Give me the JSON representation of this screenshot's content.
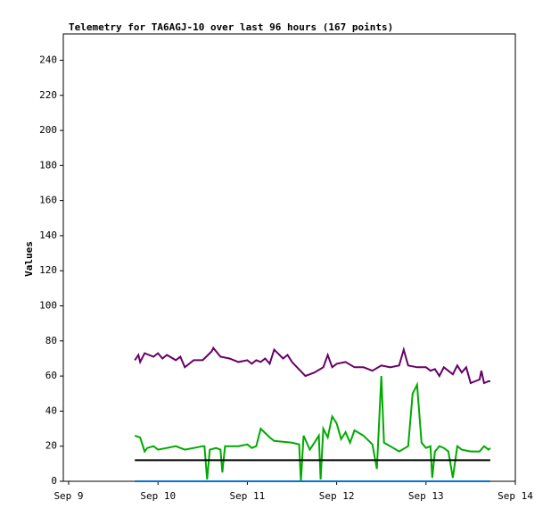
{
  "chart_data": {
    "type": "line",
    "title": "Telemetry for TA6AGJ-10 over last 96 hours (167 points)",
    "y_label": "Values",
    "xlim": [
      8.94,
      14.0
    ],
    "xticks": [
      {
        "value": 9,
        "label": "Sep 9"
      },
      {
        "value": 10,
        "label": "Sep 10"
      },
      {
        "value": 11,
        "label": "Sep 11"
      },
      {
        "value": 12,
        "label": "Sep 12"
      },
      {
        "value": 13,
        "label": "Sep 13"
      },
      {
        "value": 14,
        "label": "Sep 14"
      }
    ],
    "ylim": [
      0,
      255
    ],
    "yticks": [
      0,
      20,
      40,
      60,
      80,
      100,
      120,
      140,
      160,
      180,
      200,
      220,
      240
    ],
    "series": [
      {
        "color": "#660066",
        "x": [
          9.74,
          9.78,
          9.8,
          9.85,
          9.95,
          10.0,
          10.05,
          10.1,
          10.2,
          10.25,
          10.3,
          10.4,
          10.5,
          10.6,
          10.62,
          10.7,
          10.8,
          10.9,
          11.0,
          11.05,
          11.1,
          11.15,
          11.2,
          11.25,
          11.3,
          11.4,
          11.45,
          11.5,
          11.65,
          11.75,
          11.85,
          11.9,
          11.95,
          12.0,
          12.1,
          12.2,
          12.3,
          12.4,
          12.5,
          12.6,
          12.7,
          12.75,
          12.8,
          12.9,
          13.0,
          13.05,
          13.1,
          13.15,
          13.2,
          13.3,
          13.35,
          13.4,
          13.45,
          13.5,
          13.55,
          13.6,
          13.62,
          13.65,
          13.7,
          13.72
        ],
        "values": [
          69,
          72,
          68,
          73,
          71,
          73,
          70,
          72,
          69,
          71,
          65,
          69,
          69,
          74,
          76,
          71,
          70,
          68,
          69,
          67,
          69,
          68,
          70,
          67,
          75,
          70,
          72,
          68,
          60,
          62,
          65,
          72,
          65,
          67,
          68,
          65,
          65,
          63,
          66,
          65,
          66,
          75,
          66,
          65,
          65,
          63,
          64,
          60,
          65,
          61,
          66,
          62,
          65,
          56,
          57,
          58,
          63,
          56,
          57,
          57
        ]
      },
      {
        "color": "#00aa00",
        "x": [
          9.74,
          9.8,
          9.85,
          9.88,
          9.95,
          10.0,
          10.1,
          10.2,
          10.3,
          10.4,
          10.5,
          10.52,
          10.55,
          10.58,
          10.65,
          10.7,
          10.72,
          10.75,
          10.8,
          10.9,
          11.0,
          11.05,
          11.1,
          11.15,
          11.25,
          11.3,
          11.5,
          11.58,
          11.6,
          11.63,
          11.7,
          11.75,
          11.8,
          11.82,
          11.85,
          11.9,
          11.95,
          12.0,
          12.05,
          12.1,
          12.15,
          12.2,
          12.3,
          12.4,
          12.45,
          12.5,
          12.53,
          12.6,
          12.7,
          12.8,
          12.85,
          12.9,
          12.95,
          13.0,
          13.05,
          13.07,
          13.1,
          13.15,
          13.2,
          13.25,
          13.3,
          13.35,
          13.4,
          13.5,
          13.6,
          13.65,
          13.7,
          13.72
        ],
        "values": [
          26,
          25,
          17,
          19,
          20,
          18,
          19,
          20,
          18,
          19,
          20,
          20,
          1,
          18,
          19,
          18,
          5,
          20,
          20,
          20,
          21,
          19,
          20,
          30,
          25,
          23,
          22,
          21,
          0,
          26,
          18,
          22,
          26,
          1,
          30,
          25,
          37,
          33,
          24,
          28,
          22,
          29,
          26,
          21,
          7,
          60,
          22,
          20,
          17,
          20,
          50,
          55,
          22,
          19,
          20,
          2,
          17,
          20,
          19,
          17,
          2,
          20,
          18,
          17,
          17,
          20,
          18,
          19
        ]
      },
      {
        "color": "#000000",
        "x": [
          9.74,
          13.72
        ],
        "values": [
          12,
          12
        ]
      },
      {
        "color": "#0077cc",
        "x": [
          9.74,
          13.72
        ],
        "values": [
          0,
          0
        ]
      }
    ]
  }
}
